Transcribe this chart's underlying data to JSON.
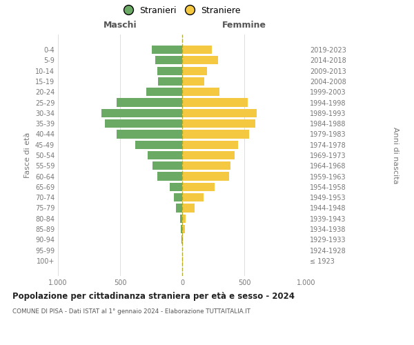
{
  "age_groups": [
    "100+",
    "95-99",
    "90-94",
    "85-89",
    "80-84",
    "75-79",
    "70-74",
    "65-69",
    "60-64",
    "55-59",
    "50-54",
    "45-49",
    "40-44",
    "35-39",
    "30-34",
    "25-29",
    "20-24",
    "15-19",
    "10-14",
    "5-9",
    "0-4"
  ],
  "birth_years": [
    "≤ 1923",
    "1924-1928",
    "1929-1933",
    "1934-1938",
    "1939-1943",
    "1944-1948",
    "1949-1953",
    "1954-1958",
    "1959-1963",
    "1964-1968",
    "1969-1973",
    "1974-1978",
    "1979-1983",
    "1984-1988",
    "1989-1993",
    "1994-1998",
    "1999-2003",
    "2004-2008",
    "2009-2013",
    "2014-2018",
    "2019-2023"
  ],
  "maschi": [
    2,
    0,
    3,
    10,
    15,
    50,
    65,
    100,
    200,
    240,
    280,
    380,
    530,
    620,
    650,
    530,
    290,
    195,
    200,
    215,
    245
  ],
  "femmine": [
    3,
    2,
    8,
    20,
    30,
    100,
    170,
    260,
    380,
    390,
    420,
    450,
    540,
    590,
    600,
    530,
    300,
    175,
    200,
    290,
    240
  ],
  "maschi_color": "#6aaa64",
  "femmine_color": "#f5c842",
  "title": "Popolazione per cittadinanza straniera per età e sesso - 2024",
  "subtitle": "COMUNE DI PISA - Dati ISTAT al 1° gennaio 2024 - Elaborazione TUTTAITALIA.IT",
  "xlabel_left": "Maschi",
  "xlabel_right": "Femmine",
  "ylabel_left": "Fasce di età",
  "ylabel_right": "Anni di nascita",
  "legend_stranieri": "Stranieri",
  "legend_straniere": "Straniere",
  "xlim": 1000,
  "background_color": "#ffffff",
  "grid_color": "#dddddd"
}
